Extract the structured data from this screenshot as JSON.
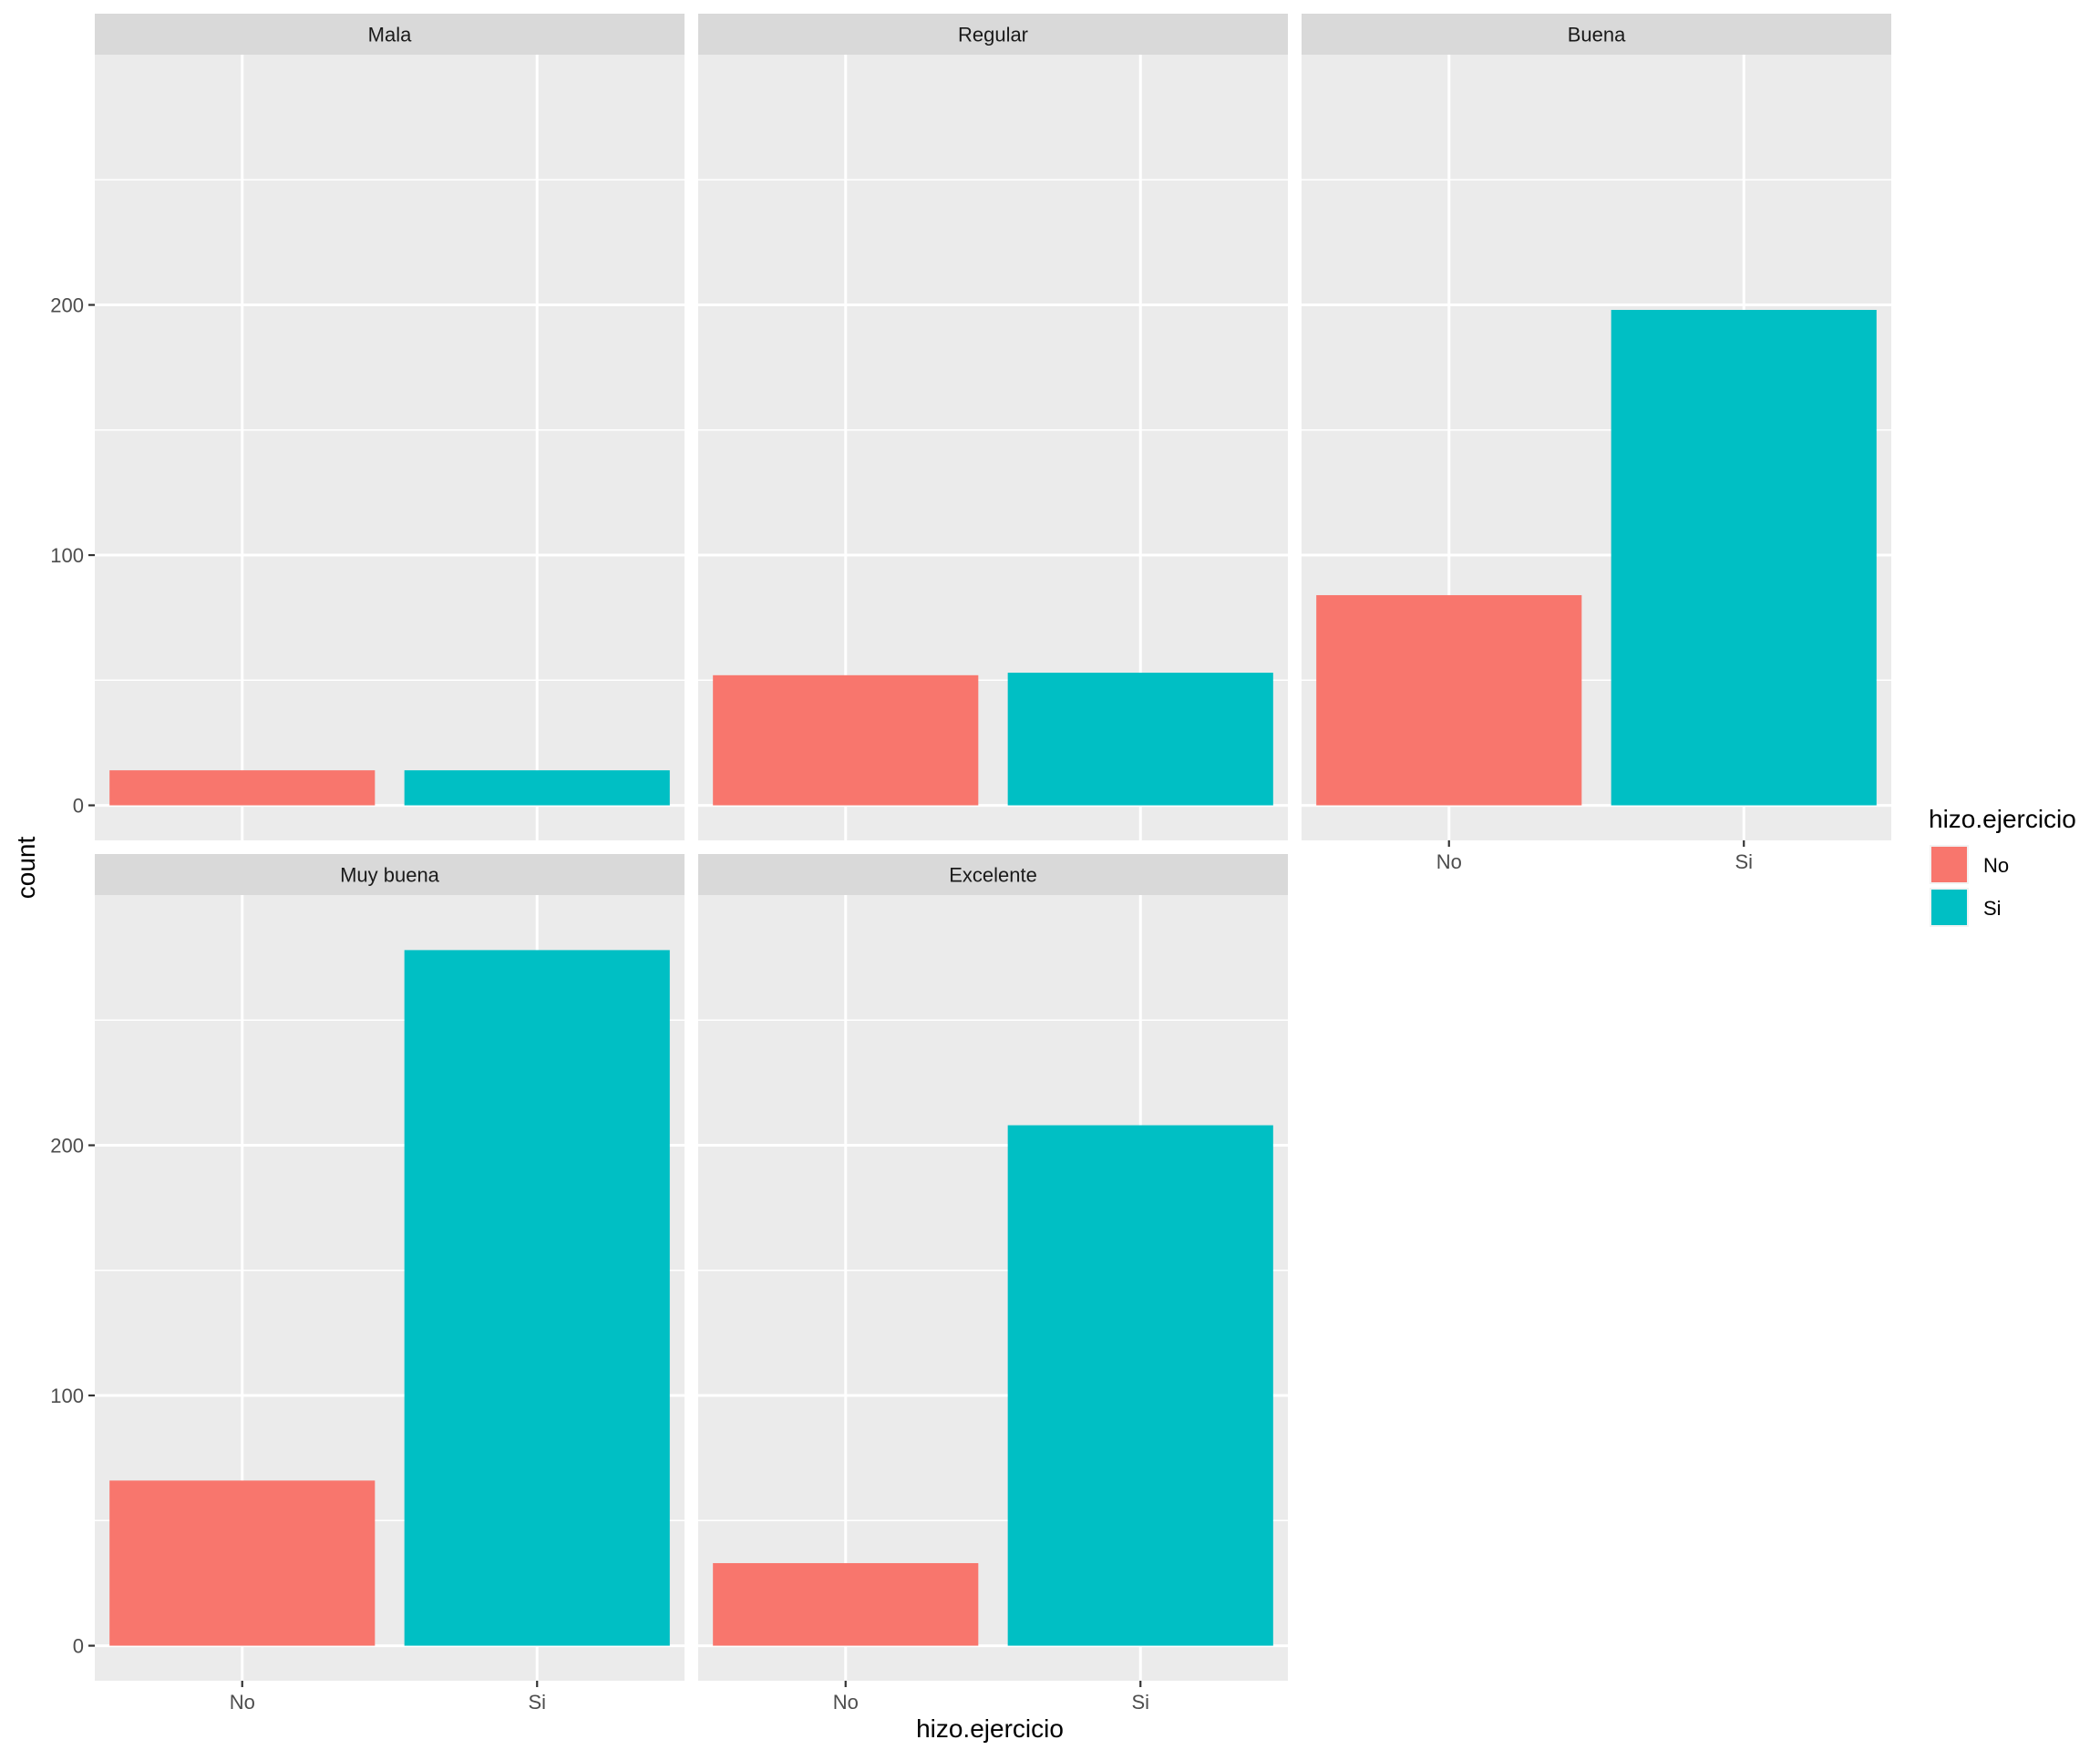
{
  "chart_data": {
    "type": "bar",
    "facet_by": "",
    "facets": [
      {
        "label": "Mala",
        "values": [
          14,
          14
        ]
      },
      {
        "label": "Regular",
        "values": [
          52,
          53
        ]
      },
      {
        "label": "Buena",
        "values": [
          84,
          198
        ]
      },
      {
        "label": "Muy buena",
        "values": [
          66,
          278
        ]
      },
      {
        "label": "Excelente",
        "values": [
          33,
          208
        ]
      }
    ],
    "categories": [
      "No",
      "Si"
    ],
    "series": [
      {
        "name": "No",
        "color": "#F8766D"
      },
      {
        "name": "Si",
        "color": "#00BFC4"
      }
    ],
    "xlabel": "hizo.ejercicio",
    "ylabel": "count",
    "ylim": [
      -14,
      300
    ],
    "y_ticks": [
      0,
      100,
      200
    ],
    "y_minor_ticks": [
      50,
      150,
      250
    ],
    "grid": true,
    "legend": {
      "title": "hizo.ejercicio",
      "position": "right"
    }
  }
}
